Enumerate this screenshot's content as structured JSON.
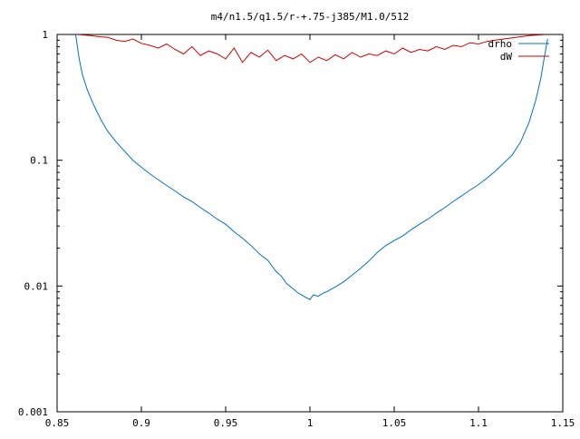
{
  "chart_data": {
    "type": "line",
    "title": "m4/n1.5/q1.5/r-+.75-j385/M1.0/512",
    "xlabel": "",
    "ylabel": "",
    "xlim": [
      0.85,
      1.15
    ],
    "ylim": [
      0.001,
      1
    ],
    "yscale": "log",
    "grid": false,
    "legend_position": "top-right",
    "xticks": [
      {
        "value": 0.85,
        "label": "0.85"
      },
      {
        "value": 0.9,
        "label": "0.9"
      },
      {
        "value": 0.95,
        "label": "0.95"
      },
      {
        "value": 1.0,
        "label": "1"
      },
      {
        "value": 1.05,
        "label": "1.05"
      },
      {
        "value": 1.1,
        "label": "1.1"
      },
      {
        "value": 1.15,
        "label": "1.15"
      }
    ],
    "yticks": [
      {
        "value": 0.001,
        "label": "0.001"
      },
      {
        "value": 0.01,
        "label": "0.01"
      },
      {
        "value": 0.1,
        "label": "0.1"
      },
      {
        "value": 1,
        "label": "1"
      }
    ],
    "series": [
      {
        "name": "drho",
        "color": "#0072bd",
        "x": [
          0.861,
          0.863,
          0.865,
          0.868,
          0.872,
          0.876,
          0.88,
          0.885,
          0.89,
          0.895,
          0.9,
          0.905,
          0.91,
          0.915,
          0.92,
          0.925,
          0.93,
          0.935,
          0.94,
          0.945,
          0.95,
          0.955,
          0.96,
          0.965,
          0.97,
          0.975,
          0.98,
          0.983,
          0.986,
          0.99,
          0.993,
          0.995,
          0.997,
          1.0,
          1.002,
          1.005,
          1.008,
          1.01,
          1.013,
          1.016,
          1.02,
          1.025,
          1.03,
          1.035,
          1.04,
          1.045,
          1.05,
          1.055,
          1.06,
          1.065,
          1.07,
          1.075,
          1.08,
          1.085,
          1.09,
          1.095,
          1.1,
          1.105,
          1.11,
          1.115,
          1.12,
          1.125,
          1.13,
          1.134,
          1.137,
          1.139,
          1.141
        ],
        "y": [
          1.0,
          0.65,
          0.48,
          0.36,
          0.27,
          0.21,
          0.17,
          0.14,
          0.118,
          0.1,
          0.088,
          0.078,
          0.07,
          0.063,
          0.057,
          0.051,
          0.047,
          0.042,
          0.038,
          0.034,
          0.031,
          0.027,
          0.024,
          0.021,
          0.018,
          0.016,
          0.013,
          0.012,
          0.0105,
          0.0095,
          0.0088,
          0.0085,
          0.0082,
          0.0078,
          0.0085,
          0.0083,
          0.0088,
          0.009,
          0.0095,
          0.01,
          0.0108,
          0.0122,
          0.0138,
          0.0158,
          0.0185,
          0.021,
          0.023,
          0.025,
          0.028,
          0.031,
          0.034,
          0.038,
          0.042,
          0.047,
          0.052,
          0.058,
          0.064,
          0.072,
          0.082,
          0.095,
          0.11,
          0.14,
          0.2,
          0.3,
          0.45,
          0.65,
          0.92
        ]
      },
      {
        "name": "dW",
        "color": "#cc0000",
        "x": [
          0.862,
          0.87,
          0.875,
          0.88,
          0.885,
          0.89,
          0.895,
          0.9,
          0.905,
          0.91,
          0.915,
          0.92,
          0.925,
          0.93,
          0.935,
          0.94,
          0.945,
          0.95,
          0.955,
          0.96,
          0.965,
          0.97,
          0.975,
          0.98,
          0.985,
          0.99,
          0.995,
          1.0,
          1.005,
          1.01,
          1.015,
          1.02,
          1.025,
          1.03,
          1.035,
          1.04,
          1.045,
          1.05,
          1.055,
          1.06,
          1.065,
          1.07,
          1.075,
          1.08,
          1.085,
          1.09,
          1.095,
          1.1,
          1.105,
          1.11,
          1.115,
          1.12,
          1.125,
          1.13,
          1.135,
          1.14
        ],
        "y": [
          1.0,
          0.98,
          0.96,
          0.95,
          0.9,
          0.88,
          0.92,
          0.85,
          0.82,
          0.78,
          0.84,
          0.76,
          0.7,
          0.8,
          0.68,
          0.74,
          0.7,
          0.64,
          0.78,
          0.6,
          0.72,
          0.66,
          0.75,
          0.62,
          0.68,
          0.64,
          0.7,
          0.6,
          0.66,
          0.62,
          0.69,
          0.64,
          0.72,
          0.66,
          0.7,
          0.68,
          0.74,
          0.7,
          0.78,
          0.72,
          0.76,
          0.74,
          0.8,
          0.76,
          0.82,
          0.8,
          0.86,
          0.84,
          0.88,
          0.9,
          0.92,
          0.94,
          0.96,
          0.98,
          0.99,
          1.0
        ]
      }
    ]
  }
}
